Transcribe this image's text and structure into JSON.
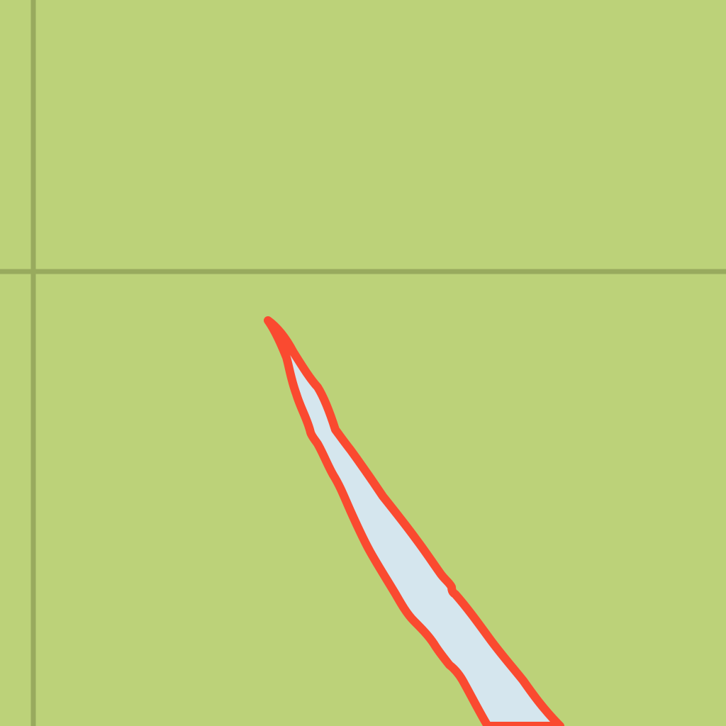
{
  "map": {
    "colors": {
      "land": "#bcd279",
      "grid_line": "#98aa5e",
      "water_fill": "#d5e6ee",
      "highlight_outline": "#fa4a30"
    },
    "features": [
      {
        "kind": "grid-line",
        "orientation": "vertical"
      },
      {
        "kind": "grid-line",
        "orientation": "horizontal"
      },
      {
        "kind": "water-channel",
        "highlighted": true
      }
    ]
  }
}
